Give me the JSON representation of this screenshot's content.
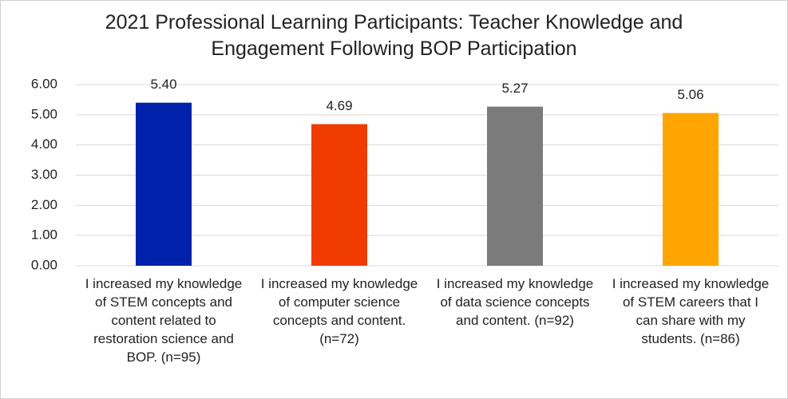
{
  "chart_data": {
    "type": "bar",
    "title": "2021 Professional Learning Participants: Teacher Knowledge and Engagement Following BOP Participation",
    "categories": [
      "I increased my knowledge of STEM concepts and content related to restoration science and BOP. (n=95)",
      "I increased my knowledge of computer science concepts and content. (n=72)",
      "I increased my knowledge of data science concepts and content. (n=92)",
      "I increased my knowledge of STEM careers that I can share with my students. (n=86)"
    ],
    "values": [
      5.4,
      4.69,
      5.27,
      5.06
    ],
    "value_labels": [
      "5.40",
      "4.69",
      "5.27",
      "5.06"
    ],
    "colors": [
      "#0022aa",
      "#f03c00",
      "#7b7b7b",
      "#ffa500"
    ],
    "ylim": [
      0,
      6
    ],
    "yticks": [
      {
        "value": 0,
        "label": "0.00"
      },
      {
        "value": 1,
        "label": "1.00"
      },
      {
        "value": 2,
        "label": "2.00"
      },
      {
        "value": 3,
        "label": "3.00"
      },
      {
        "value": 4,
        "label": "4.00"
      },
      {
        "value": 5,
        "label": "5.00"
      },
      {
        "value": 6,
        "label": "6.00"
      }
    ],
    "grid": true
  }
}
